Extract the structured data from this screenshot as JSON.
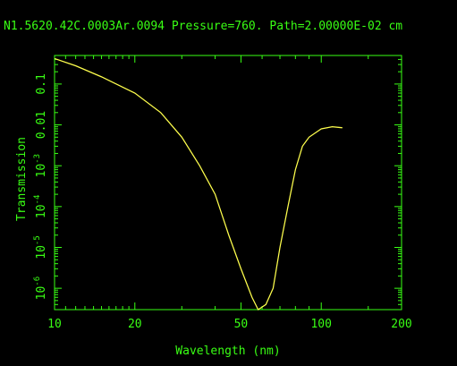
{
  "chart_data": {
    "type": "line",
    "title": "N1.5620.42C.0003Ar.0094 Pressure=760. Path=2.00000E-02 cm",
    "xlabel": "Wavelength (nm)",
    "ylabel": "Transmission",
    "x_scale": "log",
    "y_scale": "log",
    "xlim": [
      10,
      200
    ],
    "ylim": [
      3e-07,
      0.5
    ],
    "grid": false,
    "x_ticks": [
      {
        "value": 10,
        "label": "10"
      },
      {
        "value": 20,
        "label": "20"
      },
      {
        "value": 50,
        "label": "50"
      },
      {
        "value": 100,
        "label": "100"
      },
      {
        "value": 200,
        "label": "200"
      }
    ],
    "y_ticks": [
      {
        "value": 1e-06,
        "base": "10",
        "exp": "-6",
        "label": ""
      },
      {
        "value": 1e-05,
        "base": "10",
        "exp": "-5",
        "label": ""
      },
      {
        "value": 0.0001,
        "base": "10",
        "exp": "-4",
        "label": ""
      },
      {
        "value": 0.001,
        "base": "10",
        "exp": "-3",
        "label": ""
      },
      {
        "value": 0.01,
        "base": "",
        "exp": "",
        "label": "0.01"
      },
      {
        "value": 0.1,
        "base": "",
        "exp": "",
        "label": "0.1"
      }
    ],
    "series": [
      {
        "values": [
          {
            "x": 10,
            "y": 0.42
          },
          {
            "x": 12,
            "y": 0.28
          },
          {
            "x": 15,
            "y": 0.15
          },
          {
            "x": 20,
            "y": 0.06
          },
          {
            "x": 25,
            "y": 0.02
          },
          {
            "x": 30,
            "y": 0.005
          },
          {
            "x": 35,
            "y": 0.001
          },
          {
            "x": 40,
            "y": 0.0002
          },
          {
            "x": 45,
            "y": 2e-05
          },
          {
            "x": 50,
            "y": 3e-06
          },
          {
            "x": 55,
            "y": 6e-07
          },
          {
            "x": 58,
            "y": 3e-07
          },
          {
            "x": 62,
            "y": 4e-07
          },
          {
            "x": 66,
            "y": 1e-06
          },
          {
            "x": 70,
            "y": 1e-05
          },
          {
            "x": 75,
            "y": 0.0001
          },
          {
            "x": 80,
            "y": 0.0008
          },
          {
            "x": 85,
            "y": 0.003
          },
          {
            "x": 90,
            "y": 0.005
          },
          {
            "x": 100,
            "y": 0.008
          },
          {
            "x": 110,
            "y": 0.009
          },
          {
            "x": 120,
            "y": 0.0085
          }
        ]
      }
    ],
    "colors": {
      "axes": "#39ff14",
      "line": "#ffff4d",
      "background": "#000000"
    }
  }
}
